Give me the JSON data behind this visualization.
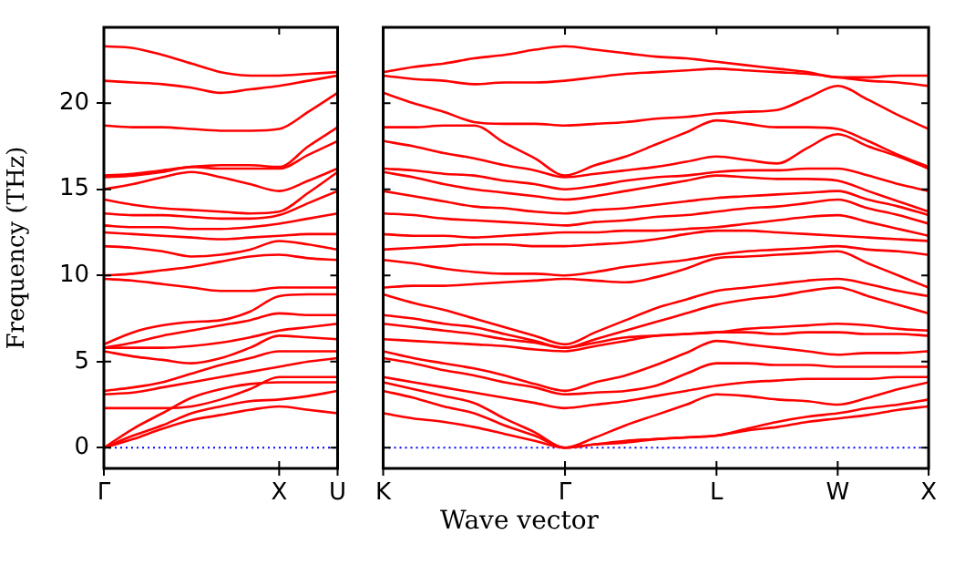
{
  "chart_data": [
    {
      "type": "line",
      "ylabel": "Frequency (THz)",
      "categories": [
        "Γ",
        null,
        null,
        null,
        null,
        null,
        "X",
        null,
        "U"
      ],
      "ylim": [
        -1.2,
        24.4
      ],
      "yticks": [
        0,
        5,
        10,
        15,
        20
      ],
      "grid": false,
      "legend": false,
      "marker": "none",
      "line_style": "solid",
      "ref_lines": [
        {
          "axis": "y",
          "value": 0,
          "label": null,
          "color": "#0000ff",
          "line_style": "dotted"
        }
      ],
      "series": [
        {
          "color": "#ff0000",
          "values": [
            0,
            0.5,
            1.1,
            1.6,
            1.9,
            2.2,
            2.4,
            2.2,
            2.0
          ]
        },
        {
          "color": "#ff0000",
          "values": [
            0,
            0.7,
            1.3,
            2.0,
            2.4,
            2.7,
            2.8,
            3.0,
            3.3
          ]
        },
        {
          "color": "#ff0000",
          "values": [
            0,
            1.1,
            2.0,
            2.9,
            3.4,
            3.7,
            3.8,
            3.8,
            3.8
          ]
        },
        {
          "color": "#ff0000",
          "values": [
            2.3,
            2.3,
            2.3,
            2.4,
            2.8,
            3.4,
            4.1,
            4.1,
            4.1
          ]
        },
        {
          "color": "#ff0000",
          "values": [
            3.1,
            3.2,
            3.5,
            3.8,
            4.1,
            4.4,
            4.7,
            5.0,
            5.2
          ]
        },
        {
          "color": "#ff0000",
          "values": [
            3.3,
            3.5,
            3.8,
            4.3,
            4.8,
            5.2,
            5.6,
            5.6,
            5.6
          ]
        },
        {
          "color": "#ff0000",
          "values": [
            5.6,
            5.3,
            5.1,
            4.9,
            5.2,
            5.8,
            6.5,
            6.4,
            6.3
          ]
        },
        {
          "color": "#ff0000",
          "values": [
            5.8,
            5.8,
            5.8,
            5.9,
            6.1,
            6.4,
            6.8,
            7.0,
            7.2
          ]
        },
        {
          "color": "#ff0000",
          "values": [
            5.8,
            6.1,
            6.5,
            6.8,
            7.1,
            7.4,
            7.8,
            7.7,
            7.7
          ]
        },
        {
          "color": "#ff0000",
          "values": [
            6.0,
            6.7,
            7.1,
            7.3,
            7.4,
            7.9,
            8.8,
            8.9,
            8.9
          ]
        },
        {
          "color": "#ff0000",
          "values": [
            9.8,
            9.7,
            9.5,
            9.3,
            9.1,
            9.1,
            9.3,
            9.3,
            9.3
          ]
        },
        {
          "color": "#ff0000",
          "values": [
            10.0,
            10.1,
            10.3,
            10.5,
            10.8,
            11.1,
            11.2,
            11.0,
            10.9
          ]
        },
        {
          "color": "#ff0000",
          "values": [
            11.7,
            11.6,
            11.4,
            11.1,
            11.2,
            11.5,
            12.0,
            11.8,
            11.5
          ]
        },
        {
          "color": "#ff0000",
          "values": [
            12.5,
            12.4,
            12.3,
            12.2,
            12.1,
            12.2,
            12.3,
            12.4,
            12.4
          ]
        },
        {
          "color": "#ff0000",
          "values": [
            12.9,
            12.8,
            12.8,
            12.7,
            12.7,
            12.8,
            13.0,
            13.3,
            13.6
          ]
        },
        {
          "color": "#ff0000",
          "values": [
            13.6,
            13.5,
            13.5,
            13.4,
            13.3,
            13.3,
            13.5,
            14.2,
            14.9
          ]
        },
        {
          "color": "#ff0000",
          "values": [
            14.4,
            14.1,
            13.9,
            13.8,
            13.7,
            13.6,
            13.7,
            14.8,
            16.0
          ]
        },
        {
          "color": "#ff0000",
          "values": [
            15.0,
            15.3,
            15.7,
            16.0,
            15.7,
            15.3,
            14.9,
            15.5,
            16.2
          ]
        },
        {
          "color": "#ff0000",
          "values": [
            15.7,
            15.8,
            16.0,
            16.3,
            16.2,
            16.2,
            16.2,
            17.0,
            17.8
          ]
        },
        {
          "color": "#ff0000",
          "values": [
            15.8,
            15.9,
            16.1,
            16.3,
            16.4,
            16.4,
            16.3,
            17.5,
            18.6
          ]
        },
        {
          "color": "#ff0000",
          "values": [
            18.7,
            18.6,
            18.6,
            18.5,
            18.4,
            18.4,
            18.5,
            19.5,
            20.6
          ]
        },
        {
          "color": "#ff0000",
          "values": [
            21.3,
            21.2,
            21.1,
            20.9,
            20.6,
            20.8,
            21.0,
            21.3,
            21.6
          ]
        },
        {
          "color": "#ff0000",
          "values": [
            23.3,
            23.2,
            22.8,
            22.3,
            21.8,
            21.6,
            21.6,
            21.7,
            21.8
          ]
        }
      ]
    },
    {
      "type": "line",
      "xlabel": "Wave vector",
      "categories": [
        "K",
        null,
        null,
        null,
        null,
        null,
        "Γ",
        null,
        null,
        null,
        null,
        "L",
        null,
        null,
        null,
        "W",
        null,
        null,
        "X"
      ],
      "ylim": [
        -1.2,
        24.4
      ],
      "yticks": [
        0,
        5,
        10,
        15,
        20
      ],
      "tick_labels": "x",
      "grid": false,
      "legend": false,
      "marker": "none",
      "line_style": "solid",
      "ref_lines": [
        {
          "axis": "y",
          "value": 0,
          "label": null,
          "color": "#0000ff",
          "line_style": "dotted"
        }
      ],
      "series": [
        {
          "color": "#ff0000",
          "values": [
            2.0,
            1.7,
            1.5,
            1.2,
            0.8,
            0.4,
            0,
            0.2,
            0.3,
            0.5,
            0.6,
            0.7,
            1.0,
            1.2,
            1.5,
            1.7,
            1.9,
            2.2,
            2.4
          ]
        },
        {
          "color": "#ff0000",
          "values": [
            3.3,
            2.9,
            2.4,
            2.0,
            1.3,
            0.7,
            0,
            0.2,
            0.4,
            0.5,
            0.6,
            0.7,
            1.1,
            1.5,
            1.8,
            2.0,
            2.3,
            2.5,
            2.8
          ]
        },
        {
          "color": "#ff0000",
          "values": [
            3.8,
            3.4,
            3.0,
            2.6,
            1.7,
            0.9,
            0,
            0.6,
            1.3,
            1.9,
            2.5,
            3.1,
            3.0,
            2.8,
            2.7,
            2.5,
            2.9,
            3.4,
            3.8
          ]
        },
        {
          "color": "#ff0000",
          "values": [
            4.1,
            3.8,
            3.5,
            3.2,
            2.9,
            2.6,
            2.3,
            2.5,
            2.7,
            3.0,
            3.3,
            3.6,
            3.8,
            3.9,
            4.0,
            4.0,
            4.0,
            4.1,
            4.1
          ]
        },
        {
          "color": "#ff0000",
          "values": [
            5.2,
            4.9,
            4.5,
            4.2,
            3.8,
            3.5,
            3.1,
            3.2,
            3.3,
            3.6,
            4.3,
            4.9,
            4.9,
            4.8,
            4.8,
            4.7,
            4.7,
            4.7,
            4.7
          ]
        },
        {
          "color": "#ff0000",
          "values": [
            5.6,
            5.2,
            4.9,
            4.6,
            4.2,
            3.7,
            3.3,
            3.8,
            4.2,
            4.8,
            5.5,
            6.2,
            6.0,
            5.8,
            5.6,
            5.4,
            5.5,
            5.5,
            5.6
          ]
        },
        {
          "color": "#ff0000",
          "values": [
            6.3,
            6.2,
            6.1,
            6.0,
            5.9,
            5.7,
            5.6,
            5.9,
            6.2,
            6.5,
            6.6,
            6.7,
            6.7,
            6.6,
            6.7,
            6.7,
            6.6,
            6.6,
            6.5
          ]
        },
        {
          "color": "#ff0000",
          "values": [
            7.2,
            7.0,
            6.8,
            6.6,
            6.3,
            6.1,
            5.8,
            6.1,
            6.4,
            6.5,
            6.6,
            6.7,
            6.9,
            7.0,
            7.1,
            7.2,
            7.1,
            6.9,
            6.8
          ]
        },
        {
          "color": "#ff0000",
          "values": [
            7.7,
            7.5,
            7.2,
            7.0,
            6.6,
            6.2,
            5.8,
            6.3,
            6.8,
            7.3,
            7.8,
            8.3,
            8.6,
            8.8,
            9.1,
            9.3,
            8.8,
            8.3,
            7.8
          ]
        },
        {
          "color": "#ff0000",
          "values": [
            8.9,
            8.4,
            8.0,
            7.5,
            7.0,
            6.5,
            6.0,
            6.7,
            7.4,
            8.1,
            8.6,
            9.1,
            9.3,
            9.5,
            9.7,
            9.8,
            9.5,
            9.1,
            8.8
          ]
        },
        {
          "color": "#ff0000",
          "values": [
            9.3,
            9.4,
            9.4,
            9.5,
            9.6,
            9.7,
            9.8,
            9.7,
            9.6,
            9.9,
            10.4,
            11.0,
            11.1,
            11.2,
            11.3,
            11.4,
            10.7,
            10.0,
            9.3
          ]
        },
        {
          "color": "#ff0000",
          "values": [
            10.9,
            10.7,
            10.4,
            10.2,
            10.1,
            10.1,
            10.0,
            10.2,
            10.5,
            10.7,
            10.9,
            11.2,
            11.4,
            11.5,
            11.6,
            11.7,
            11.5,
            11.4,
            11.2
          ]
        },
        {
          "color": "#ff0000",
          "values": [
            11.5,
            11.6,
            11.7,
            11.8,
            11.8,
            11.7,
            11.7,
            11.8,
            11.9,
            12.1,
            12.4,
            12.6,
            12.6,
            12.5,
            12.4,
            12.3,
            12.2,
            12.1,
            12.0
          ]
        },
        {
          "color": "#ff0000",
          "values": [
            12.4,
            12.3,
            12.3,
            12.2,
            12.3,
            12.4,
            12.5,
            12.5,
            12.6,
            12.6,
            12.7,
            12.8,
            13.0,
            13.2,
            13.4,
            13.5,
            13.1,
            12.7,
            12.3
          ]
        },
        {
          "color": "#ff0000",
          "values": [
            13.6,
            13.5,
            13.3,
            13.2,
            13.1,
            13.0,
            12.9,
            13.1,
            13.2,
            13.4,
            13.5,
            13.7,
            13.9,
            14.0,
            14.2,
            14.4,
            13.9,
            13.5,
            13.0
          ]
        },
        {
          "color": "#ff0000",
          "values": [
            14.9,
            14.6,
            14.3,
            14.0,
            13.9,
            13.7,
            13.6,
            13.8,
            13.9,
            14.1,
            14.3,
            14.5,
            14.6,
            14.7,
            14.8,
            14.9,
            14.4,
            14.0,
            13.5
          ]
        },
        {
          "color": "#ff0000",
          "values": [
            16.0,
            15.7,
            15.3,
            15.0,
            14.8,
            14.6,
            14.4,
            14.6,
            14.9,
            15.2,
            15.5,
            15.8,
            15.7,
            15.6,
            15.6,
            15.5,
            14.9,
            14.3,
            13.7
          ]
        },
        {
          "color": "#ff0000",
          "values": [
            16.2,
            16.1,
            15.9,
            15.8,
            15.5,
            15.3,
            15.0,
            15.2,
            15.5,
            15.7,
            15.8,
            16.0,
            16.1,
            16.1,
            16.2,
            16.2,
            15.8,
            15.3,
            14.9
          ]
        },
        {
          "color": "#ff0000",
          "values": [
            17.8,
            17.5,
            17.1,
            16.8,
            16.4,
            16.1,
            15.7,
            15.9,
            16.1,
            16.3,
            16.6,
            16.9,
            16.7,
            16.5,
            17.4,
            18.2,
            17.5,
            16.9,
            16.2
          ]
        },
        {
          "color": "#ff0000",
          "values": [
            18.6,
            18.6,
            18.7,
            18.7,
            17.7,
            16.8,
            15.8,
            16.4,
            16.9,
            17.6,
            18.3,
            19.0,
            18.8,
            18.6,
            18.6,
            18.5,
            17.8,
            17.0,
            16.3
          ]
        },
        {
          "color": "#ff0000",
          "values": [
            20.6,
            20.0,
            19.5,
            18.9,
            18.8,
            18.8,
            18.7,
            18.8,
            18.9,
            19.1,
            19.2,
            19.4,
            19.5,
            19.6,
            20.3,
            21.0,
            20.2,
            19.3,
            18.5
          ]
        },
        {
          "color": "#ff0000",
          "values": [
            21.6,
            21.4,
            21.3,
            21.1,
            21.2,
            21.2,
            21.3,
            21.5,
            21.7,
            21.8,
            21.9,
            22.0,
            21.9,
            21.8,
            21.7,
            21.5,
            21.3,
            21.2,
            21.0
          ]
        },
        {
          "color": "#ff0000",
          "values": [
            21.8,
            22.1,
            22.3,
            22.6,
            22.8,
            23.1,
            23.3,
            23.1,
            22.9,
            22.7,
            22.6,
            22.4,
            22.2,
            22.0,
            21.8,
            21.5,
            21.5,
            21.6,
            21.6
          ]
        }
      ]
    }
  ]
}
